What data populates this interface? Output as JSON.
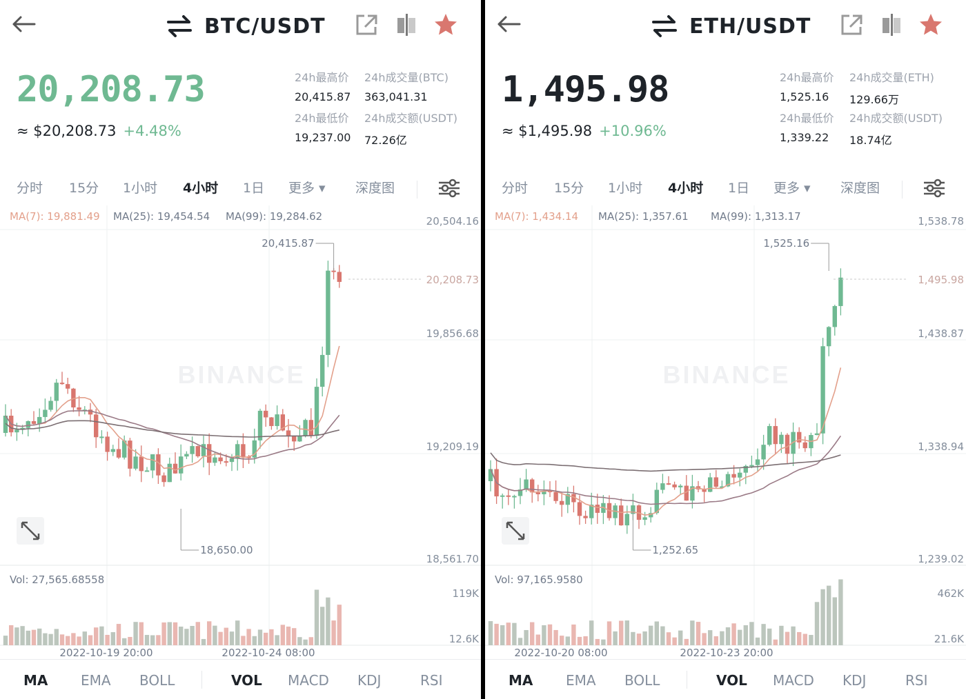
{
  "colors": {
    "up": "#6fb992",
    "down": "#d9776f",
    "grid": "#eef0f2",
    "ma7": "#e3a08b",
    "ma25": "#9a7a86",
    "ma99": "#7b6e72",
    "vol_up": "#bcc6bd",
    "vol_down": "#e9b7b1"
  },
  "panels": [
    {
      "pair": "BTC/USDT",
      "price": "20,208.73",
      "price_color": "#6fb992",
      "approx": "≈ $20,208.73",
      "change": "+4.48%",
      "stats": [
        {
          "label": "24h最高价",
          "value": "20,415.87"
        },
        {
          "label": "24h成交量(BTC)",
          "value": "363,041.31"
        },
        {
          "label": "24h最低价",
          "value": "19,237.00"
        },
        {
          "label": "24h成交额(USDT)",
          "value": "72.26亿"
        }
      ],
      "tabs": [
        "分时",
        "15分",
        "1小时",
        "4小时",
        "1日",
        "更多 ▾",
        "深度图"
      ],
      "active_tab": "4小时",
      "ma": {
        "ma7": "MA(7): 19,881.49",
        "ma25": "MA(25): 19,454.54",
        "ma99": "MA(99): 19,284.62"
      },
      "price_axis": [
        "20,504.16",
        "19,856.68",
        "19,209.19",
        "18,561.70"
      ],
      "last_price_tag": "20,208.73",
      "high_label": "20,415.87",
      "low_label": "18,650.00",
      "watermark": "BINANCE",
      "vol_label": "Vol: 27,565.68558",
      "vol_axis": [
        "119K",
        "12.6K"
      ],
      "dates": [
        "2022-10-19 20:00",
        "2022-10-24 08:00"
      ],
      "indicators": [
        "MA",
        "EMA",
        "BOLL",
        "VOL",
        "MACD",
        "KDJ",
        "RSI"
      ],
      "active_indicators": [
        "MA",
        "VOL"
      ]
    },
    {
      "pair": "ETH/USDT",
      "price": "1,495.98",
      "price_color": "#1e2329",
      "approx": "≈ $1,495.98",
      "change": "+10.96%",
      "stats": [
        {
          "label": "24h最高价",
          "value": "1,525.16"
        },
        {
          "label": "24h成交量(ETH)",
          "value": "129.66万"
        },
        {
          "label": "24h最低价",
          "value": "1,339.22"
        },
        {
          "label": "24h成交额(USDT)",
          "value": "18.74亿"
        }
      ],
      "tabs": [
        "分时",
        "15分",
        "1小时",
        "4小时",
        "1日",
        "更多 ▾",
        "深度图"
      ],
      "active_tab": "4小时",
      "ma": {
        "ma7": "MA(7): 1,434.14",
        "ma25": "MA(25): 1,357.61",
        "ma99": "MA(99): 1,313.17"
      },
      "price_axis": [
        "1,538.78",
        "1,438.87",
        "1,338.94",
        "1,239.02"
      ],
      "last_price_tag": "1,495.98",
      "high_label": "1,525.16",
      "low_label": "1,252.65",
      "watermark": "BINANCE",
      "vol_label": "Vol: 97,165.9580",
      "vol_axis": [
        "462K",
        "21.6K"
      ],
      "dates": [
        "2022-10-20 08:00",
        "2022-10-23 20:00"
      ],
      "indicators": [
        "MA",
        "EMA",
        "BOLL",
        "VOL",
        "MACD",
        "KDJ",
        "RSI"
      ],
      "active_indicators": [
        "MA",
        "VOL"
      ]
    }
  ]
}
